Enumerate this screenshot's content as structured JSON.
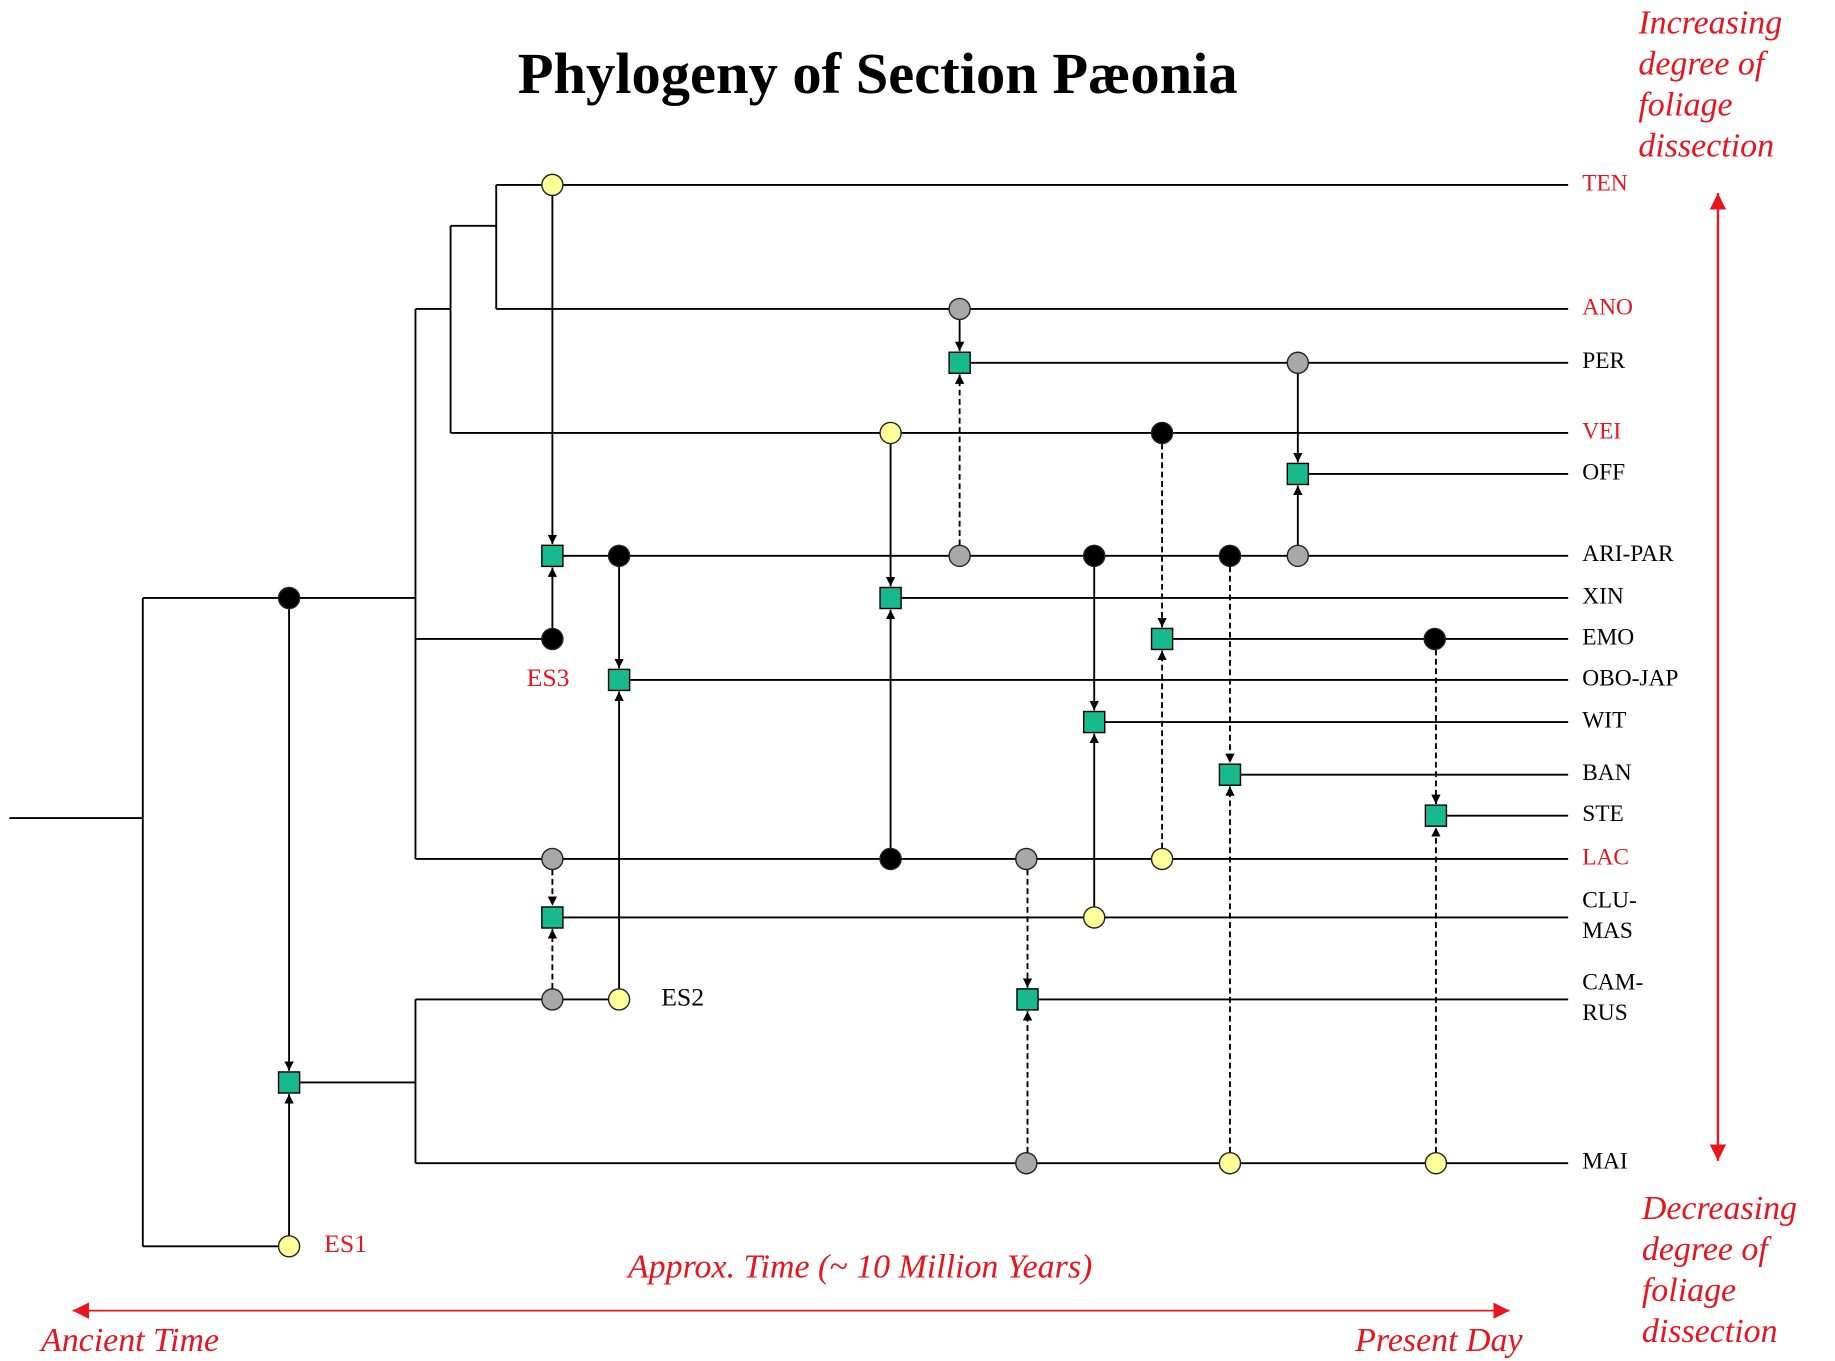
{
  "title": "Phylogeny of Section Pæonia",
  "taxa": [
    {
      "lines": [
        "TEN"
      ],
      "color": "#e8141e"
    },
    {
      "lines": [
        "ANO"
      ],
      "color": "#e8141e"
    },
    {
      "lines": [
        "PER"
      ],
      "color": "#000000"
    },
    {
      "lines": [
        "VEI"
      ],
      "color": "#e8141e"
    },
    {
      "lines": [
        "OFF"
      ],
      "color": "#000000"
    },
    {
      "lines": [
        "ARI-PAR"
      ],
      "color": "#000000"
    },
    {
      "lines": [
        "XIN"
      ],
      "color": "#000000"
    },
    {
      "lines": [
        "EMO"
      ],
      "color": "#000000"
    },
    {
      "lines": [
        "OBO-JAP"
      ],
      "color": "#000000"
    },
    {
      "lines": [
        "WIT"
      ],
      "color": "#000000"
    },
    {
      "lines": [
        "BAN"
      ],
      "color": "#000000"
    },
    {
      "lines": [
        "STE"
      ],
      "color": "#000000"
    },
    {
      "lines": [
        "LAC"
      ],
      "color": "#e8141e"
    },
    {
      "lines": [
        "CLU-",
        "MAS"
      ],
      "color": "#000000"
    },
    {
      "lines": [
        "CAM-",
        "RUS"
      ],
      "color": "#000000"
    },
    {
      "lines": [
        "MAI"
      ],
      "color": "#000000"
    }
  ],
  "events": [
    {
      "label": "ES1",
      "color": "#e8141e"
    },
    {
      "label": "ES2",
      "color": "#000000"
    },
    {
      "label": "ES3",
      "color": "#e8141e"
    }
  ],
  "top_note": [
    "Increasing",
    "degree of",
    "foliage",
    "dissection"
  ],
  "bottom_note": [
    "Decreasing",
    "degree of",
    "foliage",
    "dissection"
  ],
  "time_axis": {
    "label": "Approx. Time (~ 10 Million Years)",
    "start": "Ancient Time",
    "end": "Present Day"
  }
}
